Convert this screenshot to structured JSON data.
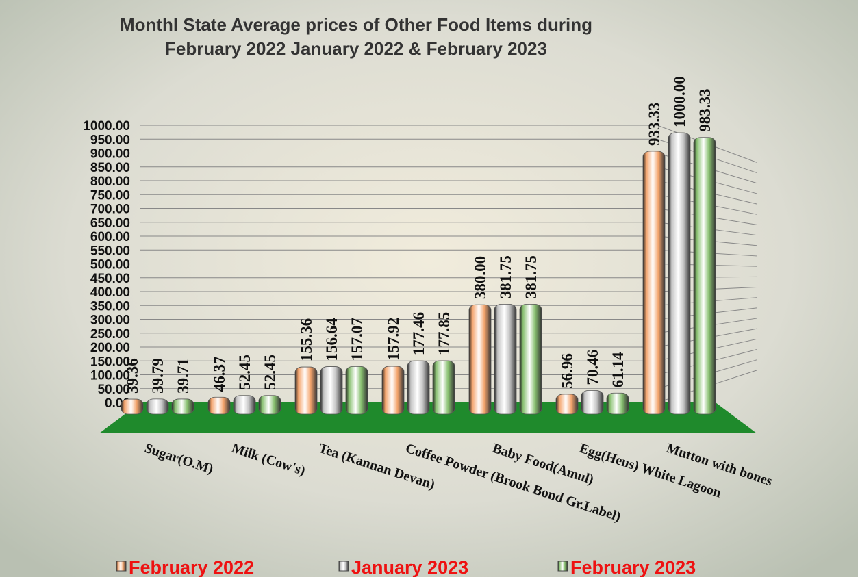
{
  "chart_data": {
    "type": "bar",
    "title": [
      "Monthl State Average prices of Other Food Items during",
      "February 2022  January 2022  &  February 2023"
    ],
    "categories": [
      "Sugar(O.M)",
      "Milk  (Cow's)",
      "Tea (Kannan Devan)",
      "Coffee Powder (Brook Bond Gr.Label)",
      "Baby Food(Amul)",
      "Egg(Hens) White Lagoon",
      "Mutton with  bones"
    ],
    "series": [
      {
        "name": "February 2022",
        "color": "#f4a46c",
        "values": [
          39.36,
          46.37,
          155.36,
          157.92,
          380,
          56.96,
          933.33
        ],
        "value_labels": [
          "39.36",
          "46.37",
          "155.36",
          "157.92",
          "380.00",
          "56.96",
          "933.33"
        ]
      },
      {
        "name": "January 2023",
        "color": "#c4c4c4",
        "values": [
          39.79,
          52.45,
          156.64,
          177.46,
          381.75,
          70.46,
          1000
        ],
        "value_labels": [
          "39.79",
          "52.45",
          "156.64",
          "177.46",
          "381.75",
          "70.46",
          "1000.00"
        ]
      },
      {
        "name": "February 2023",
        "color": "#88c070",
        "values": [
          39.71,
          52.45,
          157.07,
          177.85,
          381.75,
          61.14,
          983.33
        ],
        "value_labels": [
          "39.71",
          "52.45",
          "157.07",
          "177.85",
          "381.75",
          "61.14",
          "983.33"
        ]
      }
    ],
    "ylim": [
      0,
      1000
    ],
    "yticks": [
      {
        "value": 0,
        "label": "0.00"
      },
      {
        "value": 50,
        "label": "50.00"
      },
      {
        "value": 100,
        "label": "100.00"
      },
      {
        "value": 150,
        "label": "150.00"
      },
      {
        "value": 200,
        "label": "200.00"
      },
      {
        "value": 250,
        "label": "250.00"
      },
      {
        "value": 300,
        "label": "300.00"
      },
      {
        "value": 350,
        "label": "350.00"
      },
      {
        "value": 400,
        "label": "400.00"
      },
      {
        "value": 450,
        "label": "450.00"
      },
      {
        "value": 500,
        "label": "500.00"
      },
      {
        "value": 550,
        "label": "550.00"
      },
      {
        "value": 600,
        "label": "600.00"
      },
      {
        "value": 650,
        "label": "650.00"
      },
      {
        "value": 700,
        "label": "700.00"
      },
      {
        "value": 750,
        "label": "750.00"
      },
      {
        "value": 800,
        "label": "800.00"
      },
      {
        "value": 850,
        "label": "850.00"
      },
      {
        "value": 900,
        "label": "900.00"
      },
      {
        "value": 950,
        "label": "950.00"
      },
      {
        "value": 1000,
        "label": "1000.00"
      }
    ],
    "grid": true,
    "floor_color": "#1f8a2c",
    "legend_position": "bottom"
  }
}
